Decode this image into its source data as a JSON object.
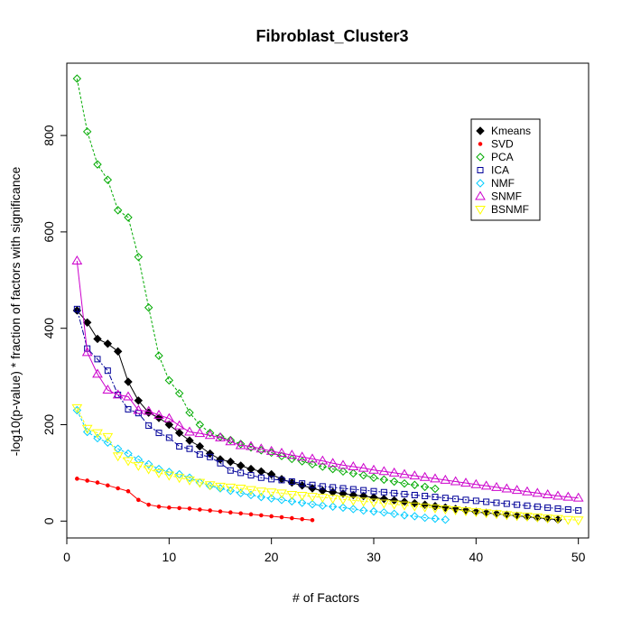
{
  "chart_data": {
    "type": "line",
    "title": "Fibroblast_Cluster3",
    "xlabel": "# of Factors",
    "ylabel": "-log10(p-value) * fraction of factors with significance",
    "xlim": [
      0,
      51
    ],
    "ylim": [
      -35,
      950
    ],
    "xticks": [
      0,
      10,
      20,
      30,
      40,
      50
    ],
    "yticks": [
      0,
      200,
      400,
      600,
      800
    ],
    "legend_position": "top-right",
    "series": [
      {
        "name": "Kmeans",
        "color": "#000000",
        "marker": "diamond-filled",
        "dash": "",
        "x": [
          1,
          2,
          3,
          4,
          5,
          6,
          7,
          8,
          9,
          10,
          11,
          12,
          13,
          14,
          15,
          16,
          17,
          18,
          19,
          20,
          21,
          22,
          23,
          24,
          25,
          26,
          27,
          28,
          29,
          30,
          31,
          32,
          33,
          34,
          35,
          36,
          37,
          38,
          39,
          40,
          41,
          42,
          43,
          44,
          45,
          46,
          47,
          48
        ],
        "y": [
          437,
          412,
          378,
          368,
          352,
          289,
          250,
          225,
          214,
          200,
          183,
          167,
          155,
          140,
          128,
          123,
          115,
          108,
          103,
          97,
          87,
          80,
          74,
          68,
          63,
          60,
          57,
          54,
          52,
          49,
          46,
          43,
          40,
          37,
          34,
          31,
          28,
          25,
          22,
          19,
          17,
          15,
          13,
          11,
          9,
          7,
          5,
          3
        ]
      },
      {
        "name": "SVD",
        "color": "#ff0000",
        "marker": "dot",
        "dash": "",
        "x": [
          1,
          2,
          3,
          4,
          5,
          6,
          7,
          8,
          9,
          10,
          11,
          12,
          13,
          14,
          15,
          16,
          17,
          18,
          19,
          20,
          21,
          22,
          23,
          24
        ],
        "y": [
          88,
          84,
          80,
          74,
          68,
          62,
          44,
          34,
          30,
          28,
          27,
          26,
          24,
          22,
          20,
          18,
          16,
          14,
          12,
          10,
          8,
          6,
          4,
          2
        ]
      },
      {
        "name": "PCA",
        "color": "#00aa00",
        "marker": "diamond-open",
        "dash": "3,2",
        "x": [
          1,
          2,
          3,
          4,
          5,
          6,
          7,
          8,
          9,
          10,
          11,
          12,
          13,
          14,
          15,
          16,
          17,
          18,
          19,
          20,
          21,
          22,
          23,
          24,
          25,
          26,
          27,
          28,
          29,
          30,
          31,
          32,
          33,
          34,
          35,
          36
        ],
        "y": [
          918,
          808,
          740,
          708,
          645,
          630,
          548,
          443,
          343,
          292,
          265,
          225,
          200,
          183,
          175,
          168,
          160,
          153,
          147,
          142,
          135,
          129,
          124,
          118,
          113,
          108,
          103,
          99,
          95,
          90,
          86,
          82,
          78,
          75,
          71,
          67
        ]
      },
      {
        "name": "ICA",
        "color": "#000099",
        "marker": "square-open",
        "dash": "6,2,2,2",
        "x": [
          1,
          2,
          3,
          4,
          5,
          6,
          7,
          8,
          9,
          10,
          11,
          12,
          13,
          14,
          15,
          16,
          17,
          18,
          19,
          20,
          21,
          22,
          23,
          24,
          25,
          26,
          27,
          28,
          29,
          30,
          31,
          32,
          33,
          34,
          35,
          36,
          37,
          38,
          39,
          40,
          41,
          42,
          43,
          44,
          45,
          46,
          47,
          48,
          49,
          50
        ],
        "y": [
          440,
          358,
          336,
          312,
          262,
          232,
          224,
          198,
          183,
          173,
          155,
          150,
          138,
          133,
          120,
          105,
          100,
          95,
          90,
          87,
          85,
          82,
          78,
          75,
          72,
          70,
          68,
          66,
          64,
          62,
          60,
          58,
          56,
          54,
          52,
          50,
          48,
          46,
          44,
          42,
          40,
          38,
          36,
          34,
          32,
          30,
          28,
          26,
          24,
          22
        ]
      },
      {
        "name": "NMF",
        "color": "#00ccff",
        "marker": "diamond-open",
        "dash": "3,2",
        "x": [
          1,
          2,
          3,
          4,
          5,
          6,
          7,
          8,
          9,
          10,
          11,
          12,
          13,
          14,
          15,
          16,
          17,
          18,
          19,
          20,
          21,
          22,
          23,
          24,
          25,
          26,
          27,
          28,
          29,
          30,
          31,
          32,
          33,
          34,
          35,
          36,
          37
        ],
        "y": [
          230,
          185,
          172,
          163,
          150,
          140,
          128,
          118,
          108,
          102,
          97,
          90,
          80,
          73,
          68,
          63,
          58,
          54,
          50,
          47,
          44,
          41,
          38,
          35,
          32,
          30,
          28,
          25,
          22,
          20,
          18,
          15,
          12,
          10,
          7,
          5,
          3
        ]
      },
      {
        "name": "SNMF",
        "color": "#cc00cc",
        "marker": "triangle-up-open",
        "dash": "",
        "x": [
          1,
          2,
          3,
          4,
          5,
          6,
          7,
          8,
          9,
          10,
          11,
          12,
          13,
          14,
          15,
          16,
          17,
          18,
          19,
          20,
          21,
          22,
          23,
          24,
          25,
          26,
          27,
          28,
          29,
          30,
          31,
          32,
          33,
          34,
          35,
          36,
          37,
          38,
          39,
          40,
          41,
          42,
          43,
          44,
          45,
          46,
          47,
          48,
          49,
          50
        ],
        "y": [
          540,
          350,
          305,
          272,
          262,
          258,
          230,
          228,
          220,
          213,
          198,
          185,
          182,
          178,
          173,
          165,
          157,
          155,
          150,
          145,
          141,
          137,
          133,
          129,
          125,
          120,
          116,
          113,
          110,
          106,
          103,
          100,
          97,
          94,
          91,
          88,
          85,
          82,
          79,
          76,
          73,
          70,
          67,
          64,
          61,
          58,
          55,
          52,
          50,
          48
        ]
      },
      {
        "name": "BSNMF",
        "color": "#ffff00",
        "marker": "triangle-down-open",
        "dash": "3,2",
        "x": [
          1,
          2,
          3,
          4,
          5,
          6,
          7,
          8,
          9,
          10,
          11,
          12,
          13,
          14,
          15,
          16,
          17,
          18,
          19,
          20,
          21,
          22,
          23,
          24,
          25,
          26,
          27,
          28,
          29,
          30,
          31,
          32,
          33,
          34,
          35,
          36,
          37,
          38,
          39,
          40,
          41,
          42,
          43,
          44,
          45,
          46,
          47,
          48,
          49,
          50
        ],
        "y": [
          235,
          192,
          183,
          175,
          135,
          125,
          115,
          108,
          100,
          95,
          90,
          85,
          80,
          75,
          72,
          70,
          68,
          65,
          62,
          60,
          58,
          55,
          53,
          51,
          49,
          47,
          45,
          43,
          41,
          39,
          37,
          35,
          33,
          31,
          29,
          27,
          25,
          23,
          21,
          19,
          17,
          15,
          13,
          11,
          10,
          8,
          6,
          5,
          3,
          2
        ]
      }
    ]
  }
}
